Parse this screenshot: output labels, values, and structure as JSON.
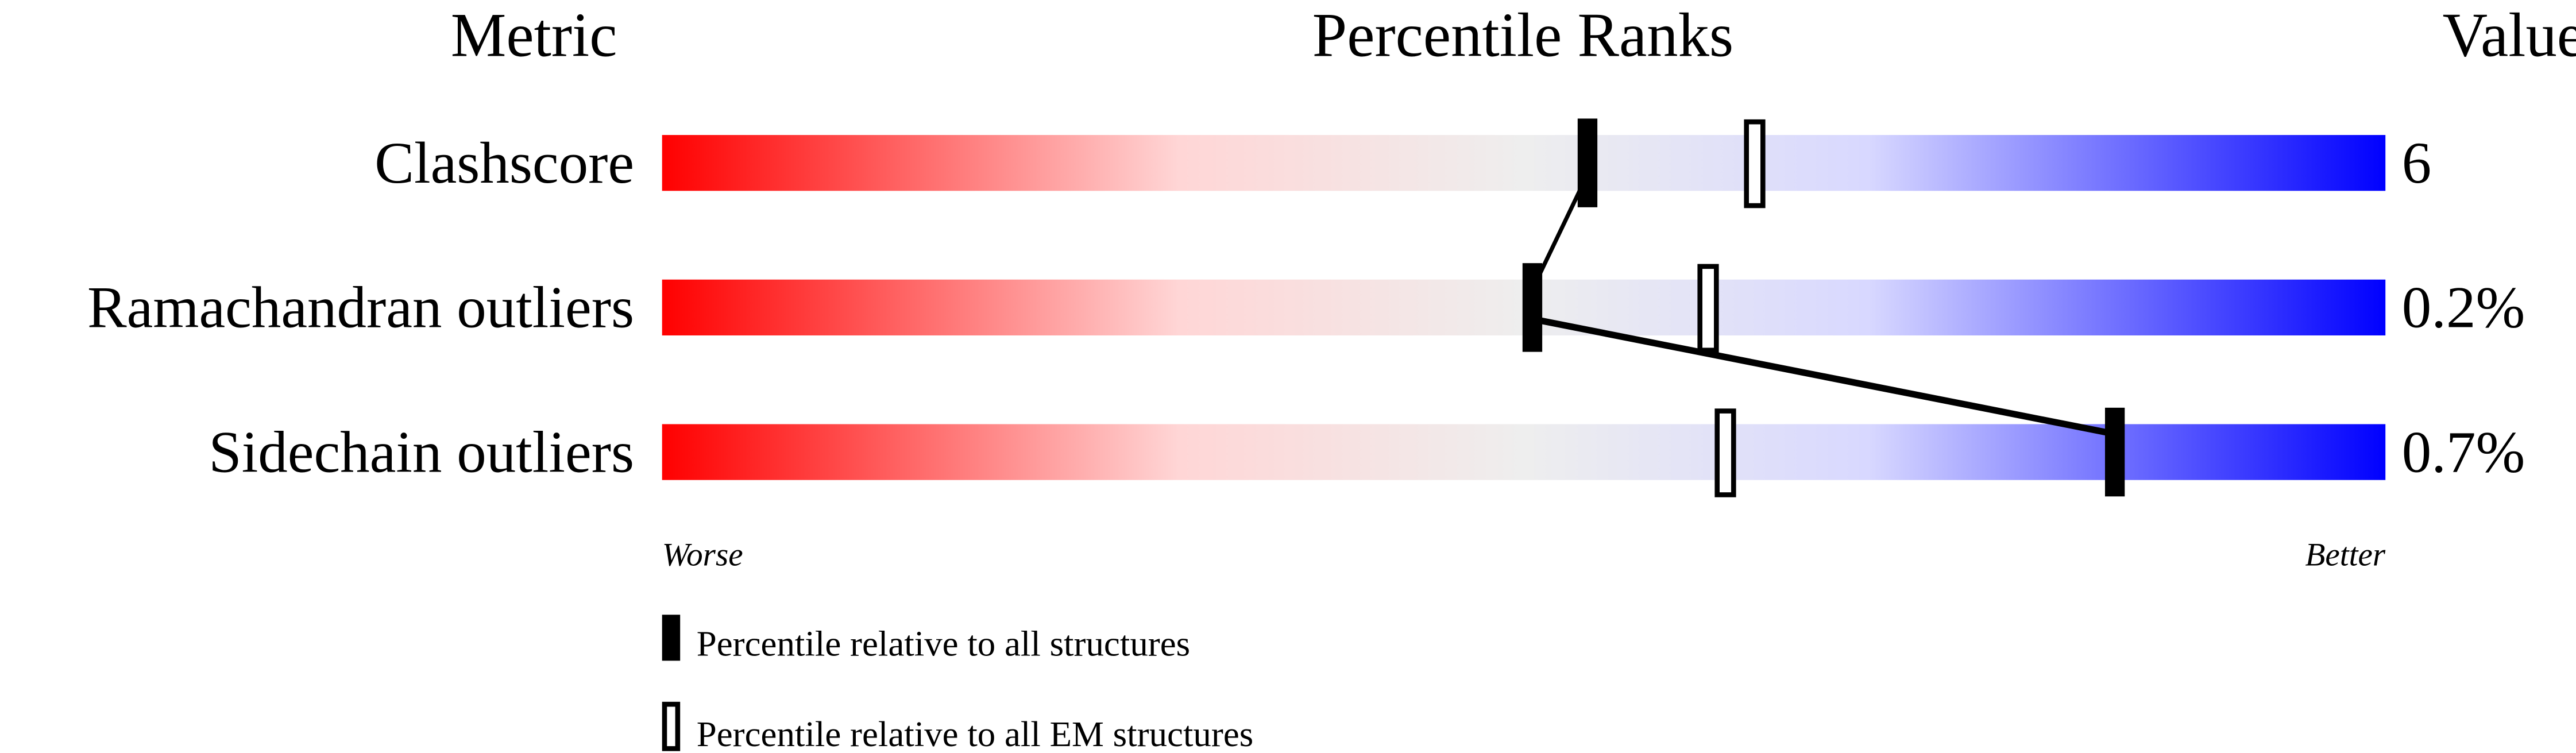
{
  "chart_data": {
    "type": "bar",
    "headers": {
      "metric": "Metric",
      "ranks": "Percentile Ranks",
      "value": "Value"
    },
    "axis": {
      "left": "Worse",
      "right": "Better",
      "range": [
        0,
        100
      ]
    },
    "metrics": [
      {
        "name": "Clashscore",
        "value": "6",
        "percentile_all": 53.7,
        "percentile_em": 63.4
      },
      {
        "name": "Ramachandran outliers",
        "value": "0.2%",
        "percentile_all": 50.5,
        "percentile_em": 60.7
      },
      {
        "name": "Sidechain outliers",
        "value": "0.7%",
        "percentile_all": 84.3,
        "percentile_em": 61.7
      }
    ],
    "legend": {
      "all": "Percentile relative to all structures",
      "em": "Percentile relative to all EM structures"
    },
    "colors": {
      "worse": "#ff0000",
      "mid": "#eeeeee",
      "better": "#0000ff"
    }
  }
}
